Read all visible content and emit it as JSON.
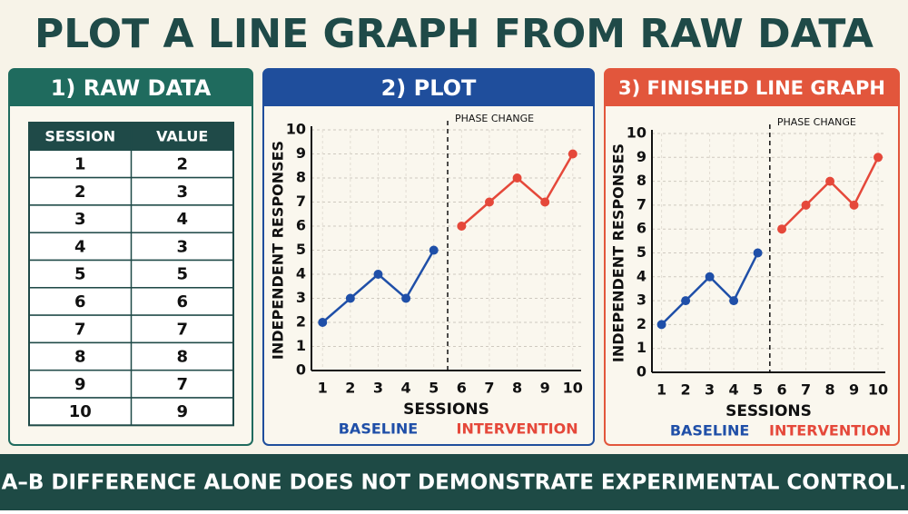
{
  "title": "PLOT A LINE GRAPH FROM RAW DATA",
  "panels": [
    "1) RAW DATA",
    "2) PLOT",
    "3) FINISHED LINE GRAPH"
  ],
  "table": {
    "headers": [
      "SESSION",
      "VALUE"
    ],
    "rows": [
      [
        1,
        2
      ],
      [
        2,
        3
      ],
      [
        3,
        4
      ],
      [
        4,
        3
      ],
      [
        5,
        5
      ],
      [
        6,
        6
      ],
      [
        7,
        7
      ],
      [
        8,
        8
      ],
      [
        9,
        7
      ],
      [
        10,
        9
      ]
    ]
  },
  "chart_data": [
    {
      "type": "line",
      "x": [
        1,
        2,
        3,
        4,
        5,
        6,
        7,
        8,
        9,
        10
      ],
      "series": [
        {
          "name": "BASELINE",
          "color": "#1f4fa8",
          "values": [
            2,
            3,
            4,
            3,
            5,
            null,
            null,
            null,
            null,
            null
          ]
        },
        {
          "name": "INTERVENTION",
          "color": "#e5483a",
          "values": [
            null,
            null,
            null,
            null,
            null,
            6,
            7,
            8,
            7,
            9
          ]
        }
      ],
      "xlabel": "SESSIONS",
      "ylabel": "INDEPENDENT RESPONSES",
      "xlim": [
        0.6,
        10.3
      ],
      "ylim": [
        0,
        10
      ],
      "xticks": [
        1,
        2,
        3,
        4,
        5,
        6,
        7,
        8,
        9,
        10
      ],
      "yticks": [
        0,
        1,
        2,
        3,
        4,
        5,
        6,
        7,
        8,
        9,
        10
      ],
      "grid": true,
      "phase_change": {
        "label": "PHASE CHANGE",
        "x": 5.5
      }
    },
    {
      "type": "line",
      "x": [
        1,
        2,
        3,
        4,
        5,
        6,
        7,
        8,
        9,
        10
      ],
      "series": [
        {
          "name": "BASELINE",
          "color": "#1f4fa8",
          "values": [
            2,
            3,
            4,
            3,
            5,
            null,
            null,
            null,
            null,
            null
          ]
        },
        {
          "name": "INTERVENTION",
          "color": "#e5483a",
          "values": [
            null,
            null,
            null,
            null,
            null,
            6,
            7,
            8,
            7,
            9
          ]
        }
      ],
      "xlabel": "SESSIONS",
      "ylabel": "INDEPENDENT RESPONSES",
      "xlim": [
        0.6,
        10.3
      ],
      "ylim": [
        0,
        10
      ],
      "xticks": [
        1,
        2,
        3,
        4,
        5,
        6,
        7,
        8,
        9,
        10
      ],
      "yticks": [
        0,
        1,
        2,
        3,
        4,
        5,
        6,
        7,
        8,
        9,
        10
      ],
      "grid": true,
      "phase_change": {
        "label": "PHASE CHANGE",
        "x": 5.5
      }
    }
  ],
  "footer": "A–B DIFFERENCE ALONE DOES NOT DEMONSTRATE EXPERIMENTAL CONTROL."
}
